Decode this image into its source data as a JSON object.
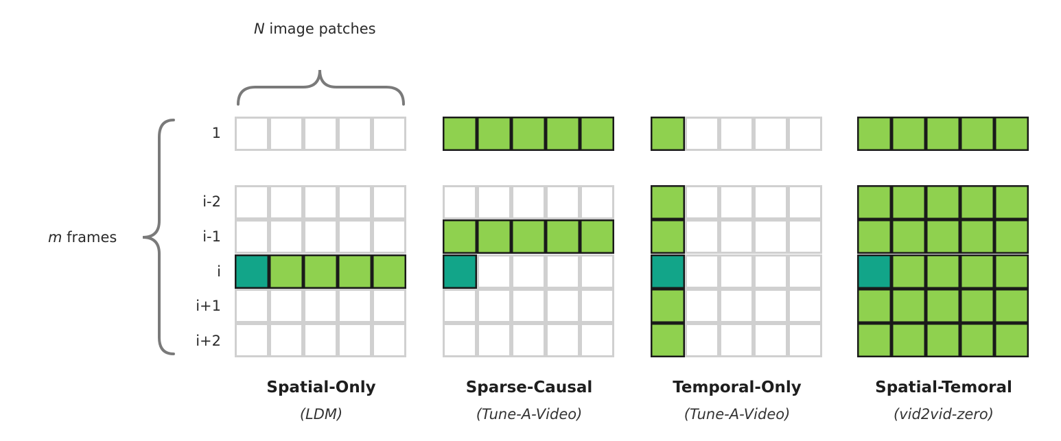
{
  "header": {
    "patches_var": "N",
    "patches_text": " image patches",
    "frames_var": "m",
    "frames_text": " frames"
  },
  "row_labels": [
    "1",
    "i-2",
    "i-1",
    "i",
    "i+1",
    "i+2"
  ],
  "colors": {
    "empty_border": "#d0d0d0",
    "attended": "#8fd14f",
    "query": "#12a589",
    "active_border": "#1a1a1a",
    "brace": "#7a7a7a"
  },
  "patterns": [
    {
      "title": "Spatial-Only",
      "subtitle": "(LDM)",
      "cells": [
        [
          0,
          0,
          0,
          0,
          0
        ],
        [
          0,
          0,
          0,
          0,
          0
        ],
        [
          0,
          0,
          0,
          0,
          0
        ],
        [
          2,
          1,
          1,
          1,
          1
        ],
        [
          0,
          0,
          0,
          0,
          0
        ],
        [
          0,
          0,
          0,
          0,
          0
        ]
      ]
    },
    {
      "title": "Sparse-Causal",
      "subtitle": "(Tune-A-Video)",
      "cells": [
        [
          1,
          1,
          1,
          1,
          1
        ],
        [
          0,
          0,
          0,
          0,
          0
        ],
        [
          1,
          1,
          1,
          1,
          1
        ],
        [
          2,
          0,
          0,
          0,
          0
        ],
        [
          0,
          0,
          0,
          0,
          0
        ],
        [
          0,
          0,
          0,
          0,
          0
        ]
      ]
    },
    {
      "title": "Temporal-Only",
      "subtitle": "(Tune-A-Video)",
      "cells": [
        [
          1,
          0,
          0,
          0,
          0
        ],
        [
          1,
          0,
          0,
          0,
          0
        ],
        [
          1,
          0,
          0,
          0,
          0
        ],
        [
          2,
          0,
          0,
          0,
          0
        ],
        [
          1,
          0,
          0,
          0,
          0
        ],
        [
          1,
          0,
          0,
          0,
          0
        ]
      ]
    },
    {
      "title": "Spatial-Temoral",
      "subtitle": "(vid2vid-zero)",
      "cells": [
        [
          1,
          1,
          1,
          1,
          1
        ],
        [
          1,
          1,
          1,
          1,
          1
        ],
        [
          1,
          1,
          1,
          1,
          1
        ],
        [
          2,
          1,
          1,
          1,
          1
        ],
        [
          1,
          1,
          1,
          1,
          1
        ],
        [
          1,
          1,
          1,
          1,
          1
        ]
      ]
    }
  ]
}
